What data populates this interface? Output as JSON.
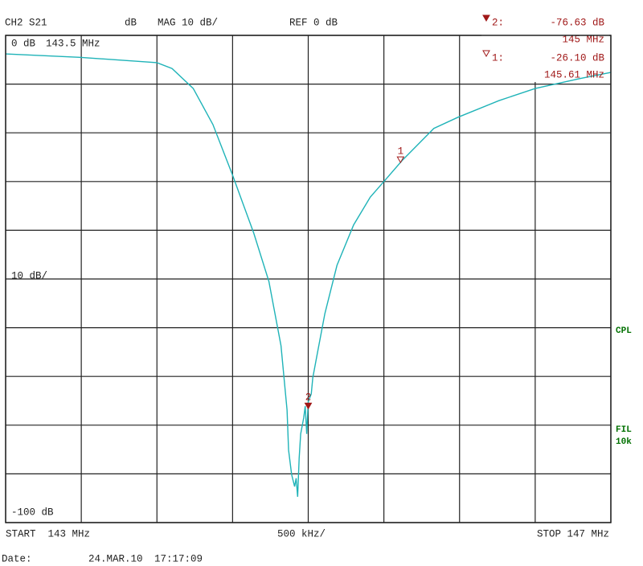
{
  "chart_data": {
    "type": "line",
    "channel": "CH2 S21",
    "unit": "dB",
    "format": "MAG 10 dB/",
    "reference": "REF 0 dB",
    "top_label": "0 dB",
    "top_freq": "143.5 MHz",
    "scale_label": "10 dB/",
    "bottom_label": "-100 dB",
    "start": "START  143 MHz",
    "span": "500 kHz/",
    "stop": "STOP 147 MHz",
    "side_labels": [
      "CPL",
      "FIL",
      "10k"
    ],
    "date_label": "Date:",
    "date": "24.MAR.10",
    "time": "17:17:09",
    "x": [
      143.0,
      143.49,
      144.0,
      144.1,
      144.24,
      144.37,
      144.5,
      144.64,
      144.74,
      144.82,
      144.85,
      144.86,
      144.87,
      144.89,
      144.91,
      144.92,
      144.93,
      144.94,
      144.95,
      144.97,
      144.98,
      144.99,
      145.0,
      145.02,
      145.03,
      145.06,
      145.11,
      145.19,
      145.3,
      145.41,
      145.5,
      145.62,
      145.83,
      145.99,
      146.26,
      146.5,
      146.79,
      147.0
    ],
    "series": [
      {
        "color": "#1fb3b8",
        "values": [
          -3.8,
          -4.5,
          -5.6,
          -6.8,
          -10.9,
          -18.3,
          -28.7,
          -40.6,
          -50.5,
          -63.7,
          -73.6,
          -76.9,
          -85.1,
          -90.1,
          -92.6,
          -90.9,
          -94.7,
          -86.8,
          -81.8,
          -78.5,
          -76.1,
          -81.8,
          -75.2,
          -73.6,
          -70.3,
          -65.3,
          -57.1,
          -47.2,
          -38.9,
          -33.2,
          -30.0,
          -25.7,
          -19.1,
          -16.8,
          -13.4,
          -10.9,
          -8.9,
          -7.6
        ]
      }
    ],
    "markers": [
      {
        "label": "2",
        "index_label": "2:",
        "style": "filled",
        "x": 145,
        "value": -76.63,
        "value_label": "-76.63 dB",
        "x_label": "145 MHz"
      },
      {
        "label": "1",
        "index_label": "1:",
        "style": "open",
        "x": 145.61,
        "value": -26.1,
        "value_label": "-26.10 dB",
        "x_label": "145.61 MHz"
      }
    ],
    "marker_color": "#a01818",
    "xlim": [
      143,
      147
    ],
    "ylim": [
      -100,
      0
    ],
    "xticks": [
      143,
      143.5,
      144,
      144.5,
      145,
      145.5,
      146,
      146.5,
      147
    ],
    "yticks": [
      0,
      -10,
      -20,
      -30,
      -40,
      -50,
      -60,
      -70,
      -80,
      -90,
      -100
    ],
    "grid": true
  }
}
